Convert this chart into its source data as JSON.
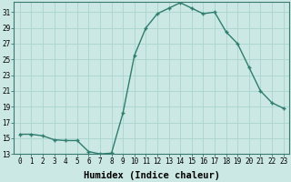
{
  "x": [
    0,
    1,
    2,
    3,
    4,
    5,
    6,
    7,
    8,
    9,
    10,
    11,
    12,
    13,
    14,
    15,
    16,
    17,
    18,
    19,
    20,
    21,
    22,
    23
  ],
  "y": [
    15.5,
    15.5,
    15.3,
    14.8,
    14.7,
    14.7,
    13.3,
    13.0,
    13.1,
    18.2,
    25.5,
    29.0,
    30.8,
    31.5,
    32.2,
    31.5,
    30.8,
    31.0,
    28.5,
    27.0,
    24.0,
    21.0,
    19.5,
    18.8
  ],
  "line_color": "#2e7d6e",
  "marker": "+",
  "marker_size": 3,
  "bg_color": "#cce8e4",
  "grid_color": "#aad4ce",
  "xlabel": "Humidex (Indice chaleur)",
  "ylim": [
    13,
    32
  ],
  "xlim_min": -0.5,
  "xlim_max": 23.5,
  "yticks": [
    13,
    15,
    17,
    19,
    21,
    23,
    25,
    27,
    29,
    31
  ],
  "xticks": [
    0,
    1,
    2,
    3,
    4,
    5,
    6,
    7,
    8,
    9,
    10,
    11,
    12,
    13,
    14,
    15,
    16,
    17,
    18,
    19,
    20,
    21,
    22,
    23
  ],
  "tick_fontsize": 5.5,
  "xlabel_fontsize": 7.5,
  "linewidth": 1.0,
  "markeredgewidth": 1.0
}
